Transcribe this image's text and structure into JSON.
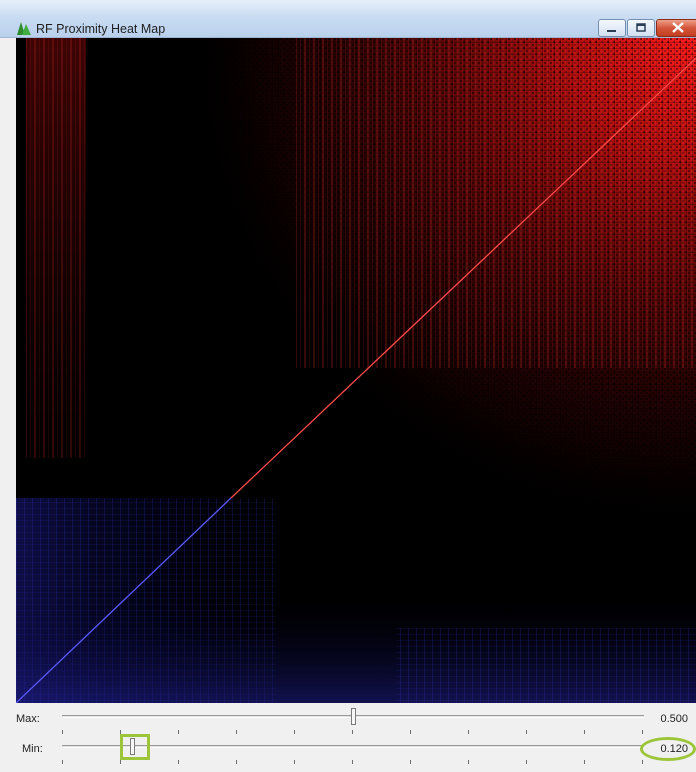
{
  "window": {
    "title": "RF Proximity Heat Map",
    "icon": "tree-icon"
  },
  "title_buttons": {
    "minimize_icon": "minimize-icon",
    "maximize_icon": "maximize-icon",
    "close_icon": "close-icon"
  },
  "heatmap": {
    "description_colors": {
      "background": "#000000",
      "upper_cluster": "#ff2020",
      "lower_cluster": "#3030ff"
    }
  },
  "controls": {
    "max_label": "Max:",
    "max_value": "0.500",
    "max_slider_level": 0.5,
    "min_label": "Min:",
    "min_value": "0.120",
    "min_slider_level": 0.12,
    "highlight_color": "#9cc53a"
  }
}
